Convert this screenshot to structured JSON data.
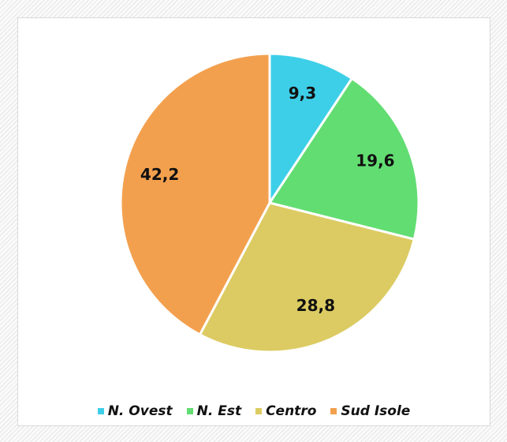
{
  "chart_data": {
    "type": "pie",
    "categories": [
      "N. Ovest",
      "N. Est",
      "Centro",
      "Sud Isole"
    ],
    "values": [
      9.3,
      19.6,
      28.8,
      42.2
    ],
    "value_labels": [
      "9,3",
      "19,6",
      "28,8",
      "42,2"
    ],
    "colors": [
      "#3ecfe8",
      "#62dd72",
      "#dccb62",
      "#f3a04e"
    ],
    "legend": "bottom"
  }
}
